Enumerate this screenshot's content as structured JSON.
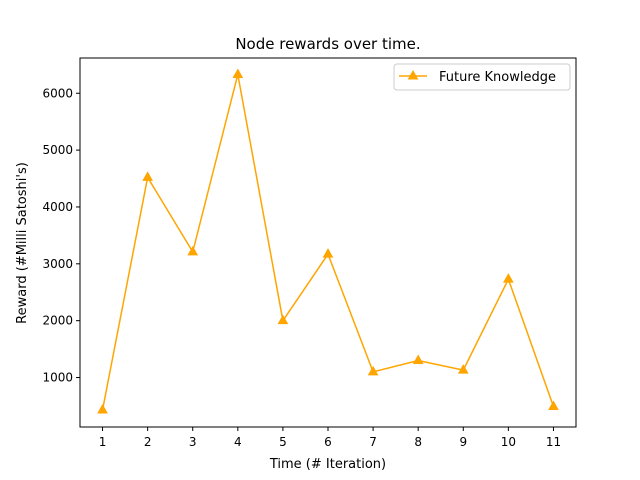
{
  "chart_data": {
    "type": "line",
    "title": "Node rewards over time.",
    "xlabel": "Time (# Iteration)",
    "ylabel": "Reward (#Milli Satoshi's)",
    "x": [
      1,
      2,
      3,
      4,
      5,
      6,
      7,
      8,
      9,
      10,
      11
    ],
    "xticks": [
      "1",
      "2",
      "3",
      "4",
      "5",
      "6",
      "7",
      "8",
      "9",
      "10",
      "11"
    ],
    "yticks": [
      1000,
      2000,
      3000,
      4000,
      5000,
      6000
    ],
    "xlim": [
      0.5,
      11.5
    ],
    "ylim": [
      130,
      6620
    ],
    "grid": false,
    "legend_position": "top-right",
    "series": [
      {
        "name": "Future Knowledge",
        "color": "#ffa500",
        "marker": "triangle-up",
        "values": [
          430,
          4520,
          3210,
          6330,
          2000,
          3170,
          1100,
          1300,
          1130,
          2730,
          490
        ]
      }
    ]
  }
}
